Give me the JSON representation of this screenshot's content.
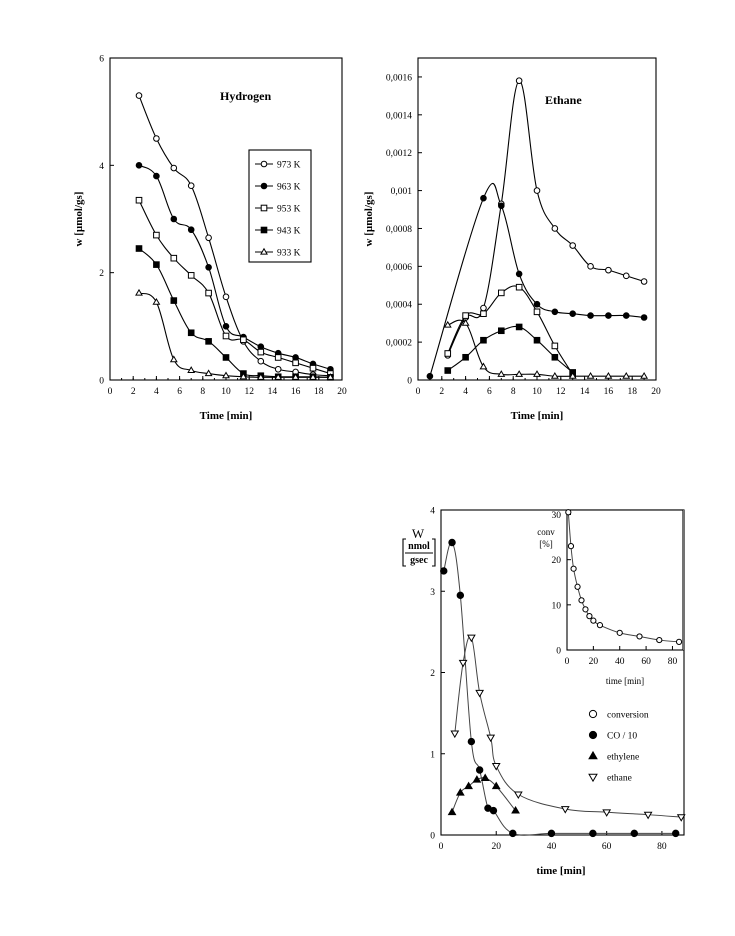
{
  "chart_data": [
    {
      "type": "line",
      "title": "Hydrogen",
      "xlabel": "Time [min]",
      "ylabel": "w [µmol/gs]",
      "xlim": [
        0,
        20
      ],
      "ylim": [
        0,
        6
      ],
      "xticks": [
        "0",
        "2",
        "4",
        "6",
        "8",
        "10",
        "12",
        "14",
        "16",
        "18",
        "20"
      ],
      "yticks": [
        "0",
        "2",
        "4",
        "6"
      ],
      "legend_position": "top-right",
      "series": [
        {
          "name": "973 K",
          "marker": "open-circle",
          "x": [
            2.5,
            4,
            5.5,
            7,
            8.5,
            10,
            11.5,
            13,
            14.5,
            16,
            17.5,
            19
          ],
          "y": [
            5.3,
            4.5,
            3.95,
            3.62,
            2.65,
            1.55,
            0.72,
            0.35,
            0.2,
            0.15,
            0.1,
            0.08
          ]
        },
        {
          "name": "963 K",
          "marker": "filled-circle",
          "x": [
            2.5,
            4,
            5.5,
            7,
            8.5,
            10,
            11.5,
            13,
            14.5,
            16,
            17.5,
            19
          ],
          "y": [
            4.0,
            3.8,
            3.0,
            2.8,
            2.1,
            1.0,
            0.8,
            0.62,
            0.5,
            0.42,
            0.3,
            0.2
          ]
        },
        {
          "name": "953 K",
          "marker": "open-square",
          "x": [
            2.5,
            4,
            5.5,
            7,
            8.5,
            10,
            11.5,
            13,
            14.5,
            16,
            17.5,
            19
          ],
          "y": [
            3.35,
            2.7,
            2.27,
            1.95,
            1.62,
            0.82,
            0.75,
            0.52,
            0.42,
            0.32,
            0.22,
            0.12
          ]
        },
        {
          "name": "943 K",
          "marker": "filled-square",
          "x": [
            2.5,
            4,
            5.5,
            7,
            8.5,
            10,
            11.5,
            13,
            14.5,
            16,
            17.5,
            19
          ],
          "y": [
            2.45,
            2.15,
            1.48,
            0.88,
            0.72,
            0.42,
            0.12,
            0.08,
            0.06,
            0.06,
            0.06,
            0.05
          ]
        },
        {
          "name": "933 K",
          "marker": "open-triangle",
          "x": [
            2.5,
            4,
            5.5,
            7,
            8.5,
            10,
            11.5,
            13,
            14.5,
            16,
            17.5,
            19
          ],
          "y": [
            1.62,
            1.45,
            0.38,
            0.18,
            0.12,
            0.08,
            0.06,
            0.05,
            0.05,
            0.05,
            0.05,
            0.05
          ]
        }
      ]
    },
    {
      "type": "line",
      "title": "Ethane",
      "xlabel": "Time [min]",
      "ylabel": "w [µmol/gs]",
      "xlim": [
        0,
        20
      ],
      "ylim": [
        0,
        0.0017
      ],
      "xticks": [
        "0",
        "2",
        "4",
        "6",
        "8",
        "10",
        "12",
        "14",
        "16",
        "18",
        "20"
      ],
      "yticks": [
        "0",
        "0,0002",
        "0,0004",
        "0,0006",
        "0,0008",
        "0,001",
        "0,0012",
        "0,0014",
        "0,0016"
      ],
      "series": [
        {
          "name": "973 K",
          "marker": "open-circle",
          "x": [
            2.5,
            4,
            5.5,
            7,
            8.5,
            10,
            11.5,
            13,
            14.5,
            16,
            17.5,
            19
          ],
          "y": [
            0.00013,
            0.00033,
            0.00038,
            0.00093,
            0.00158,
            0.001,
            0.0008,
            0.00071,
            0.0006,
            0.00058,
            0.00055,
            0.00052
          ]
        },
        {
          "name": "963 K",
          "marker": "filled-circle",
          "x": [
            1,
            5.5,
            7,
            8.5,
            10,
            11.5,
            13,
            14.5,
            16,
            17.5,
            19
          ],
          "y": [
            2e-05,
            0.00096,
            0.00092,
            0.00056,
            0.0004,
            0.00036,
            0.00035,
            0.00034,
            0.00034,
            0.00034,
            0.00033
          ]
        },
        {
          "name": "953 K",
          "marker": "open-square",
          "x": [
            2.5,
            4,
            5.5,
            7,
            8.5,
            10,
            11.5,
            13
          ],
          "y": [
            0.00014,
            0.00034,
            0.00035,
            0.00046,
            0.00049,
            0.00036,
            0.00018,
            3e-05
          ]
        },
        {
          "name": "943 K",
          "marker": "filled-square",
          "x": [
            2.5,
            4,
            5.5,
            7,
            8.5,
            10,
            11.5,
            13
          ],
          "y": [
            5e-05,
            0.00012,
            0.00021,
            0.00026,
            0.00028,
            0.00021,
            0.00012,
            4e-05
          ]
        },
        {
          "name": "933 K",
          "marker": "open-triangle",
          "x": [
            2.5,
            4,
            5.5,
            7,
            8.5,
            10,
            11.5,
            13,
            14.5,
            16,
            17.5,
            19
          ],
          "y": [
            0.00029,
            0.0003,
            7e-05,
            3e-05,
            3e-05,
            3e-05,
            2e-05,
            2e-05,
            2e-05,
            2e-05,
            2e-05,
            2e-05
          ]
        }
      ]
    },
    {
      "type": "line",
      "title": "",
      "xlabel": "time [min]",
      "ylabel_top": "W",
      "ylabel_num": "nmol",
      "ylabel_den": "gsec",
      "xlim": [
        0,
        88
      ],
      "ylim": [
        0,
        4
      ],
      "xticks": [
        "0",
        "20",
        "40",
        "60",
        "80"
      ],
      "yticks": [
        "0",
        "1",
        "2",
        "3",
        "4"
      ],
      "legend_position": "bottom-right",
      "series": [
        {
          "name": "CO / 10",
          "marker": "filled-circle",
          "x": [
            1,
            4,
            7,
            11,
            14,
            17,
            19,
            26,
            40,
            55,
            70,
            85
          ],
          "y": [
            3.25,
            3.6,
            2.95,
            1.15,
            0.8,
            0.33,
            0.3,
            0.02,
            0.02,
            0.02,
            0.02,
            0.02
          ]
        },
        {
          "name": "ethylene",
          "marker": "filled-triangle",
          "x": [
            4,
            7,
            10,
            13,
            16,
            20,
            27
          ],
          "y": [
            0.28,
            0.52,
            0.6,
            0.68,
            0.7,
            0.6,
            0.3
          ]
        },
        {
          "name": "ethane",
          "marker": "open-triangle-down",
          "x": [
            5,
            8,
            11,
            14,
            18,
            20,
            28,
            45,
            60,
            75,
            87
          ],
          "y": [
            1.25,
            2.12,
            2.43,
            1.75,
            1.2,
            0.85,
            0.5,
            0.32,
            0.28,
            0.25,
            0.22
          ]
        }
      ]
    },
    {
      "type": "line",
      "title": "",
      "xlabel": "time [min]",
      "ylabel_top": "conv",
      "ylabel_bottom": "[%]",
      "xlim": [
        0,
        88
      ],
      "ylim": [
        0,
        31
      ],
      "xticks": [
        "0",
        "20",
        "40",
        "60",
        "80"
      ],
      "yticks": [
        "0",
        "10",
        "20",
        "30"
      ],
      "series": [
        {
          "name": "conversion",
          "marker": "open-circle",
          "x": [
            1,
            3,
            5,
            8,
            11,
            14,
            17,
            20,
            25,
            40,
            55,
            70,
            85
          ],
          "y": [
            30.5,
            23,
            18,
            14,
            11,
            9,
            7.5,
            6.5,
            5.5,
            3.8,
            3.0,
            2.2,
            1.8
          ]
        }
      ]
    }
  ]
}
